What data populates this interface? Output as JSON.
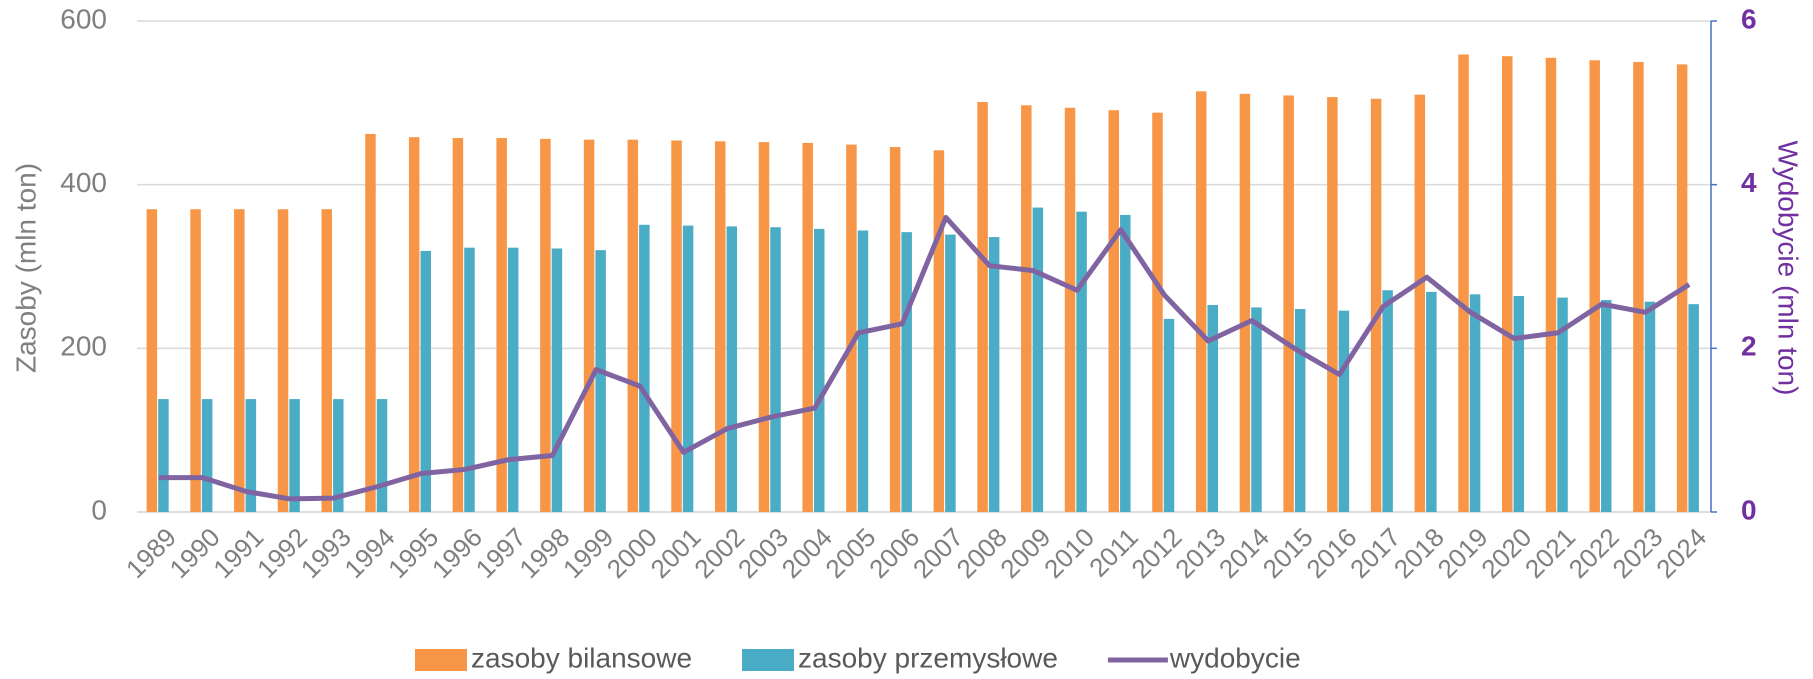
{
  "chart_data": {
    "type": "bar",
    "categories": [
      "1989",
      "1990",
      "1991",
      "1992",
      "1993",
      "1994",
      "1995",
      "1996",
      "1997",
      "1998",
      "1999",
      "2000",
      "2001",
      "2002",
      "2003",
      "2004",
      "2005",
      "2006",
      "2007",
      "2008",
      "2009",
      "2010",
      "2011",
      "2012",
      "2013",
      "2014",
      "2015",
      "2016",
      "2017",
      "2018",
      "2019",
      "2020",
      "2021",
      "2022",
      "2023",
      "2024"
    ],
    "series": [
      {
        "name": "zasoby bilansowe",
        "type": "bar",
        "color": "#f79646",
        "values": [
          370,
          370,
          370,
          370,
          370,
          462,
          458,
          457,
          457,
          456,
          455,
          455,
          454,
          453,
          452,
          451,
          449,
          446,
          442,
          501,
          497,
          494,
          491,
          488,
          514,
          511,
          509,
          507,
          505,
          510,
          559,
          557,
          555,
          552,
          550,
          547
        ]
      },
      {
        "name": "zasoby przemysłowe",
        "type": "bar",
        "color": "#4bacc6",
        "values": [
          138,
          138,
          138,
          138,
          138,
          138,
          319,
          323,
          323,
          322,
          320,
          351,
          350,
          349,
          348,
          346,
          344,
          342,
          339,
          336,
          372,
          367,
          363,
          236,
          253,
          250,
          248,
          246,
          271,
          269,
          266,
          264,
          262,
          259,
          257,
          254
        ]
      },
      {
        "name": "wydobycie",
        "type": "line",
        "axis": "y2",
        "color": "#8064a2",
        "values": [
          0.42,
          0.42,
          0.25,
          0.16,
          0.17,
          0.31,
          0.47,
          0.52,
          0.64,
          0.69,
          1.74,
          1.54,
          0.73,
          1.02,
          1.16,
          1.27,
          2.19,
          2.3,
          3.6,
          3.01,
          2.95,
          2.71,
          3.45,
          2.65,
          2.09,
          2.34,
          1.99,
          1.68,
          2.51,
          2.87,
          2.44,
          2.12,
          2.19,
          2.54,
          2.44,
          2.78
        ]
      }
    ],
    "y_label": "Zasoby (mln ton)",
    "y2_label": "Wydobycie (mln ton)",
    "ylim": [
      0,
      600
    ],
    "yticks": [
      0,
      200,
      400,
      600
    ],
    "y2lim": [
      0,
      6
    ],
    "y2ticks": [
      0,
      2,
      4,
      6
    ],
    "grid": true,
    "legend": "bottom"
  }
}
